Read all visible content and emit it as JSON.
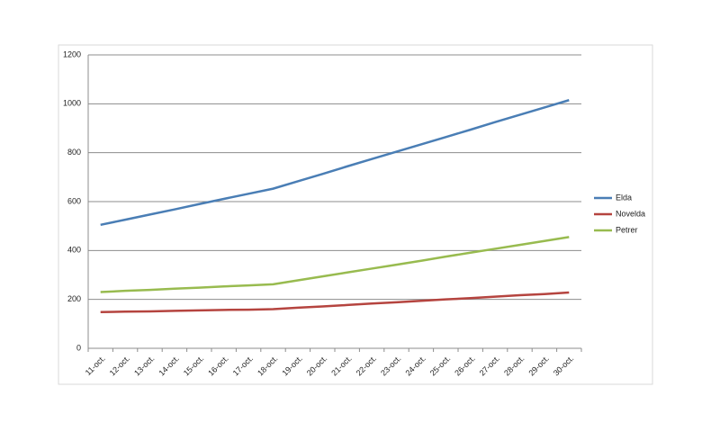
{
  "chart_data": {
    "type": "line",
    "categories": [
      "11-oct.",
      "12-oct.",
      "13-oct.",
      "14-oct.",
      "15-oct.",
      "16-oct.",
      "17-oct.",
      "18-oct.",
      "19-oct.",
      "20-oct.",
      "21-oct.",
      "22-oct.",
      "23-oct.",
      "24-oct.",
      "25-oct.",
      "26-oct.",
      "27-oct.",
      "28-oct.",
      "29-oct.",
      "30-oct."
    ],
    "series": [
      {
        "name": "Elda",
        "color": "#4a7eb5",
        "values": [
          505,
          526,
          547,
          568,
          590,
          611,
          632,
          653,
          683,
          713,
          744,
          774,
          804,
          834,
          864,
          894,
          925,
          955,
          985,
          1015
        ]
      },
      {
        "name": "Novelda",
        "color": "#b5443f",
        "values": [
          148,
          150,
          151,
          153,
          155,
          157,
          158,
          160,
          166,
          171,
          177,
          183,
          188,
          194,
          200,
          205,
          211,
          217,
          222,
          228
        ]
      },
      {
        "name": "Petrer",
        "color": "#98bb4f",
        "values": [
          230,
          235,
          239,
          244,
          248,
          253,
          257,
          262,
          278,
          294,
          310,
          326,
          342,
          358,
          375,
          391,
          407,
          423,
          439,
          455
        ]
      }
    ],
    "ylim": [
      0,
      1200
    ],
    "yticks": [
      0,
      200,
      400,
      600,
      800,
      1000,
      1200
    ],
    "grid": true,
    "legend": "right"
  }
}
